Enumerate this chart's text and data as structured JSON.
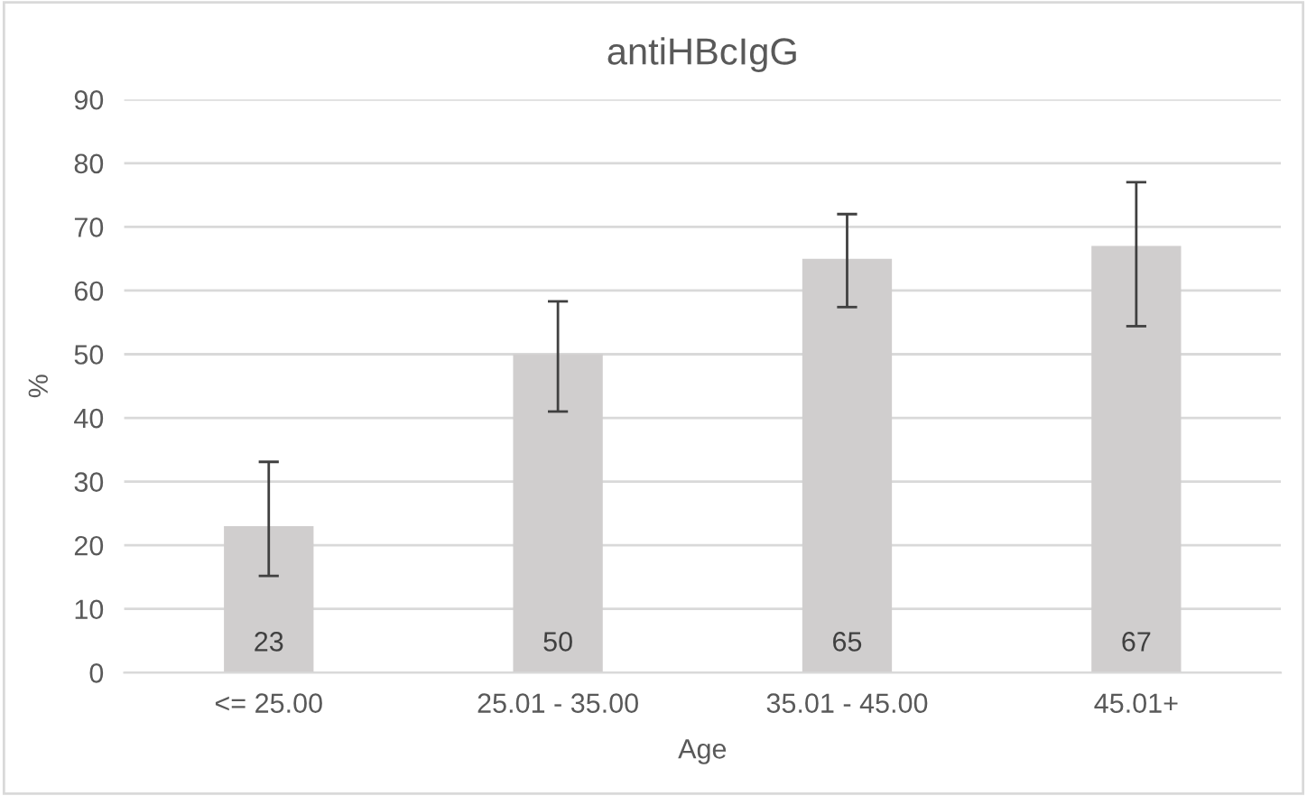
{
  "chart_data": {
    "type": "bar",
    "title": "antiHBcIgG",
    "xlabel": "Age",
    "ylabel": "%",
    "categories": [
      "<= 25.00",
      "25.01 - 35.00",
      "35.01 - 45.00",
      "45.01+"
    ],
    "values": [
      23,
      50,
      65,
      67
    ],
    "color": "#d0cece",
    "errors": [
      [
        15.2,
        33.1
      ],
      [
        41,
        58.3
      ],
      [
        57.4,
        72
      ],
      [
        54.4,
        77
      ]
    ],
    "ylim": [
      0,
      90
    ],
    "yticks": [
      0,
      10,
      20,
      30,
      40,
      50,
      60,
      70,
      80,
      90
    ],
    "grid": "y",
    "data_labels": true
  }
}
